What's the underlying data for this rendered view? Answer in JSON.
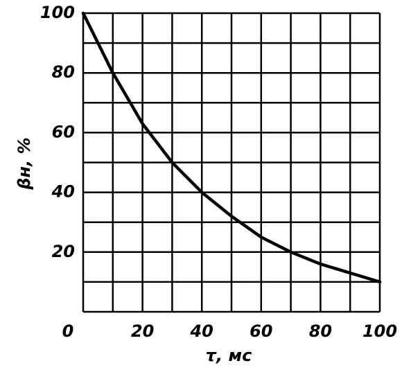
{
  "chart_data": {
    "type": "line",
    "x_label": "τ, мс",
    "y_label": "βн, %",
    "x": [
      0,
      10,
      20,
      30,
      40,
      50,
      60,
      70,
      80,
      90,
      100
    ],
    "series": [
      {
        "color": "#000000",
        "values": [
          100,
          80,
          63,
          50,
          40,
          32,
          25,
          20,
          16,
          13,
          10
        ]
      }
    ],
    "xlim": [
      0,
      100
    ],
    "ylim": [
      0,
      100
    ],
    "xticks": [
      0,
      20,
      40,
      60,
      80,
      100
    ],
    "yticks": [
      20,
      40,
      60,
      80,
      100
    ],
    "xgrid": [
      0,
      10,
      20,
      30,
      40,
      50,
      60,
      70,
      80,
      90,
      100
    ],
    "ygrid": [
      0,
      10,
      20,
      30,
      40,
      50,
      60,
      70,
      80,
      90,
      100
    ],
    "grid": true
  }
}
